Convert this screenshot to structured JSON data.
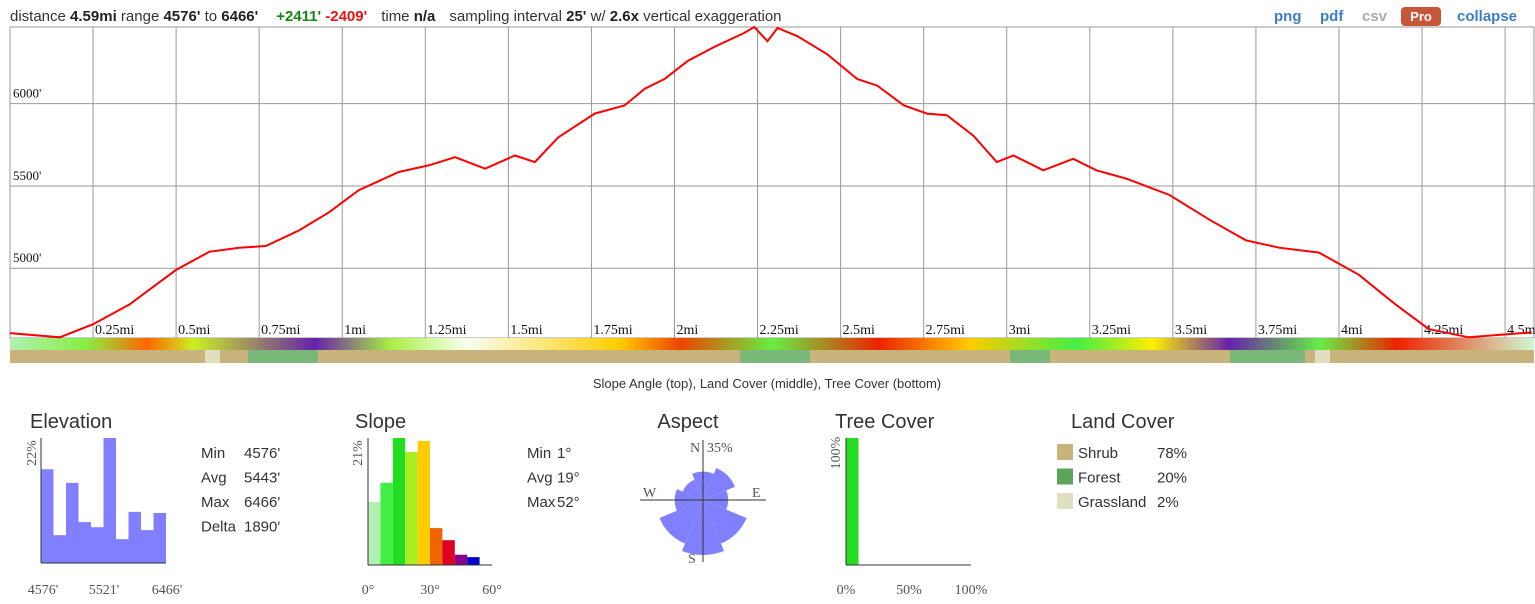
{
  "header": {
    "distance_label": "distance",
    "distance": "4.59mi",
    "range_label": "range",
    "range_min": "4576'",
    "to": "to",
    "range_max": "6466'",
    "gain": "+2411'",
    "loss": "-2409'",
    "time_label": "time",
    "time": "n/a",
    "interval_label": "sampling interval",
    "interval": "25'",
    "with": "w/",
    "exaggeration": "2.6x",
    "exaggeration_label": "vertical exaggeration"
  },
  "links": [
    "png",
    "pdf",
    "csv",
    "Pro",
    "collapse"
  ],
  "profile": {
    "type": "line",
    "color": "#ff0000",
    "x": [
      0,
      0.15,
      0.25,
      0.36,
      0.42,
      0.5,
      0.6,
      0.69,
      0.77,
      0.87,
      0.96,
      1.05,
      1.17,
      1.26,
      1.34,
      1.43,
      1.52,
      1.58,
      1.65,
      1.76,
      1.85,
      1.91,
      1.97,
      2.04,
      2.12,
      2.21,
      2.24,
      2.28,
      2.31,
      2.37,
      2.46,
      2.55,
      2.61,
      2.69,
      2.76,
      2.82,
      2.9,
      2.97,
      3.02,
      3.11,
      3.2,
      3.27,
      3.36,
      3.49,
      3.61,
      3.72,
      3.82,
      3.94,
      4.06,
      4.17,
      4.27,
      4.39,
      4.58
    ],
    "values": [
      4606,
      4580,
      4660,
      4780,
      4870,
      4990,
      5100,
      5125,
      5135,
      5230,
      5340,
      5475,
      5585,
      5625,
      5675,
      5605,
      5685,
      5645,
      5795,
      5940,
      5990,
      6090,
      6150,
      6260,
      6345,
      6430,
      6466,
      6380,
      6460,
      6410,
      6300,
      6150,
      6110,
      5990,
      5940,
      5930,
      5805,
      5645,
      5685,
      5595,
      5665,
      5595,
      5545,
      5445,
      5295,
      5170,
      5125,
      5095,
      4960,
      4780,
      4630,
      4580,
      4610
    ],
    "xlim": [
      0,
      4.59
    ],
    "ylim": [
      4576,
      6466
    ],
    "xticks": [
      {
        "value": 0.25,
        "label": "0.25mi"
      },
      {
        "value": 0.5,
        "label": "0.5mi"
      },
      {
        "value": 0.75,
        "label": "0.75mi"
      },
      {
        "value": 1,
        "label": "1mi"
      },
      {
        "value": 1.25,
        "label": "1.25mi"
      },
      {
        "value": 1.5,
        "label": "1.5mi"
      },
      {
        "value": 1.75,
        "label": "1.75mi"
      },
      {
        "value": 2,
        "label": "2mi"
      },
      {
        "value": 2.25,
        "label": "2.25mi"
      },
      {
        "value": 2.5,
        "label": "2.5mi"
      },
      {
        "value": 2.75,
        "label": "2.75mi"
      },
      {
        "value": 3,
        "label": "3mi"
      },
      {
        "value": 3.25,
        "label": "3.25mi"
      },
      {
        "value": 3.5,
        "label": "3.5mi"
      },
      {
        "value": 3.75,
        "label": "3.75mi"
      },
      {
        "value": 4,
        "label": "4mi"
      },
      {
        "value": 4.25,
        "label": "4.25mi"
      },
      {
        "value": 4.5,
        "label": "4.5mi"
      }
    ],
    "yticks": [
      {
        "value": 5000,
        "label": "5000'"
      },
      {
        "value": 5500,
        "label": "5500'"
      },
      {
        "value": 6000,
        "label": "6000'"
      }
    ],
    "caption": "Slope Angle (top), Land Cover (middle), Tree Cover (bottom)"
  },
  "elevation": {
    "type": "bar",
    "title": "Elevation",
    "color": "#8080ff",
    "ylabel": "22%",
    "ylim": [
      0,
      22
    ],
    "values": [
      16.5,
      4.9,
      14.1,
      7.2,
      6.3,
      22,
      4.2,
      9.0,
      5.8,
      8.8
    ],
    "xlabels": [
      "4576'",
      "5521'",
      "6466'"
    ],
    "stats": [
      [
        "Min",
        "4576'"
      ],
      [
        "Avg",
        "5443'"
      ],
      [
        "Max",
        "6466'"
      ],
      [
        "Delta",
        "1890'"
      ]
    ]
  },
  "slope": {
    "type": "bar",
    "title": "Slope",
    "ylabel": "21%",
    "ylim": [
      0,
      21
    ],
    "values": [
      10.4,
      13.6,
      21,
      18.7,
      20.5,
      6.1,
      4.1,
      1.7,
      1.3
    ],
    "colors": [
      "#b0f0b0",
      "#44ee44",
      "#22dd22",
      "#aaee22",
      "#ffcc00",
      "#ee6600",
      "#dd0022",
      "#880088",
      "#0000cc"
    ],
    "xlabels": [
      "0°",
      "30°",
      "60°"
    ],
    "stats": [
      [
        "Min",
        "1°"
      ],
      [
        "Avg",
        "19°"
      ],
      [
        "Max",
        "52°"
      ]
    ]
  },
  "aspect": {
    "type": "rose",
    "title": "Aspect",
    "color": "#8080ff",
    "rlim": [
      0,
      35
    ],
    "rlabel": "35%",
    "values": [
      18,
      22,
      16,
      30,
      35,
      30,
      18,
      14
    ],
    "labels": [
      "N",
      "E",
      "S",
      "W"
    ]
  },
  "tree_cover": {
    "type": "bar",
    "title": "Tree Cover",
    "color": "#22dd22",
    "ylabel": "100%",
    "ylim": [
      0,
      100
    ],
    "values": [
      100,
      0,
      0,
      0,
      0,
      0,
      0,
      0,
      0,
      0
    ],
    "xlabels": [
      "0%",
      "50%",
      "100%"
    ]
  },
  "land_cover": {
    "title": "Land Cover",
    "items": [
      {
        "name": "Shrub",
        "value": "78%",
        "color": "#c8b47a"
      },
      {
        "name": "Forest",
        "value": "20%",
        "color": "#5aa55a"
      },
      {
        "name": "Grassland",
        "value": "2%",
        "color": "#e0e0c0"
      }
    ]
  }
}
